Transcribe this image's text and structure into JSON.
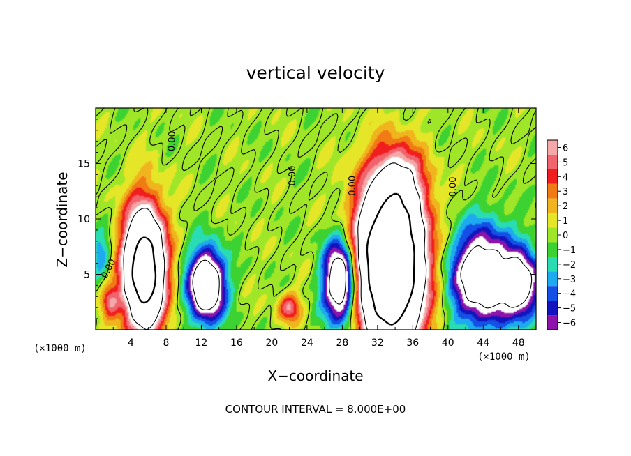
{
  "chart_data": {
    "type": "heatmap",
    "title": "vertical velocity",
    "xlabel": "X−coordinate",
    "ylabel": "Z−coordinate",
    "x_unit_left": "(×1000 m)",
    "x_unit_right": "(×1000 m)",
    "xlim": [
      0,
      50
    ],
    "ylim": [
      0,
      20
    ],
    "x_ticks": [
      4,
      8,
      12,
      16,
      20,
      24,
      28,
      32,
      36,
      40,
      44,
      48
    ],
    "x_tick_labels": [
      "4",
      "8",
      "12",
      "16",
      "20",
      "24",
      "28",
      "32",
      "36",
      "40",
      "44",
      "48"
    ],
    "y_ticks": [
      5,
      10,
      15
    ],
    "y_tick_labels": [
      "5",
      "10",
      "15"
    ],
    "contour_interval_text": "CONTOUR INTERVAL = 8.000E+00",
    "contour_labels": [
      {
        "text": "0.00",
        "x": 1.5,
        "z": 5.5,
        "angle": -62
      },
      {
        "text": "0.00",
        "x": 8.7,
        "z": 17.0,
        "angle": -88
      },
      {
        "text": "0.00",
        "x": 22.4,
        "z": 13.9,
        "angle": -90
      },
      {
        "text": "0.00",
        "x": 29.2,
        "z": 13.0,
        "angle": -90
      },
      {
        "text": "0.00",
        "x": 40.6,
        "z": 12.9,
        "angle": -90
      }
    ],
    "colorbar": {
      "levels": [
        6,
        5,
        4,
        3,
        2,
        1,
        0,
        -1,
        -2,
        -3,
        -4,
        -5,
        -6
      ],
      "labels": [
        "6",
        "5",
        "4",
        "3",
        "2",
        "1",
        "0",
        "−1",
        "−2",
        "−3",
        "−4",
        "−5",
        "−6"
      ],
      "colors": [
        "#f4a8a8",
        "#f0646e",
        "#f01e1e",
        "#f07a14",
        "#f0b41e",
        "#e6e628",
        "#a0e628",
        "#3cd232",
        "#2adcb4",
        "#1eaaf0",
        "#1450e6",
        "#1414be",
        "#8c14aa"
      ]
    },
    "fields": {
      "positive_cores": [
        {
          "x": 5.5,
          "z": 5.5,
          "sx": 1.6,
          "sz": 3.8,
          "amp": 22
        },
        {
          "x": 33.5,
          "z": 6.0,
          "sx": 2.6,
          "sz": 5.0,
          "amp": 28
        },
        {
          "x": 22.0,
          "z": 2.0,
          "sx": 0.9,
          "sz": 0.9,
          "amp": 5.5
        },
        {
          "x": 1.6,
          "z": 2.6,
          "sx": 0.7,
          "sz": 1.0,
          "amp": 5
        },
        {
          "x": 34.5,
          "z": 13.5,
          "sx": 1.8,
          "sz": 2.0,
          "amp": 4
        }
      ],
      "negative_cores": [
        {
          "x": 12.6,
          "z": 4.0,
          "sx": 1.4,
          "sz": 2.2,
          "amp": -14
        },
        {
          "x": 27.8,
          "z": 4.4,
          "sx": 1.3,
          "sz": 2.6,
          "amp": -14
        },
        {
          "x": 44.0,
          "z": 4.8,
          "sx": 2.6,
          "sz": 3.0,
          "amp": -12
        },
        {
          "x": 48.5,
          "z": 4.0,
          "sx": 1.4,
          "sz": 2.0,
          "amp": -9
        },
        {
          "x": 0.6,
          "z": 6.8,
          "sx": 0.8,
          "sz": 1.4,
          "amp": -3.5
        }
      ]
    }
  }
}
